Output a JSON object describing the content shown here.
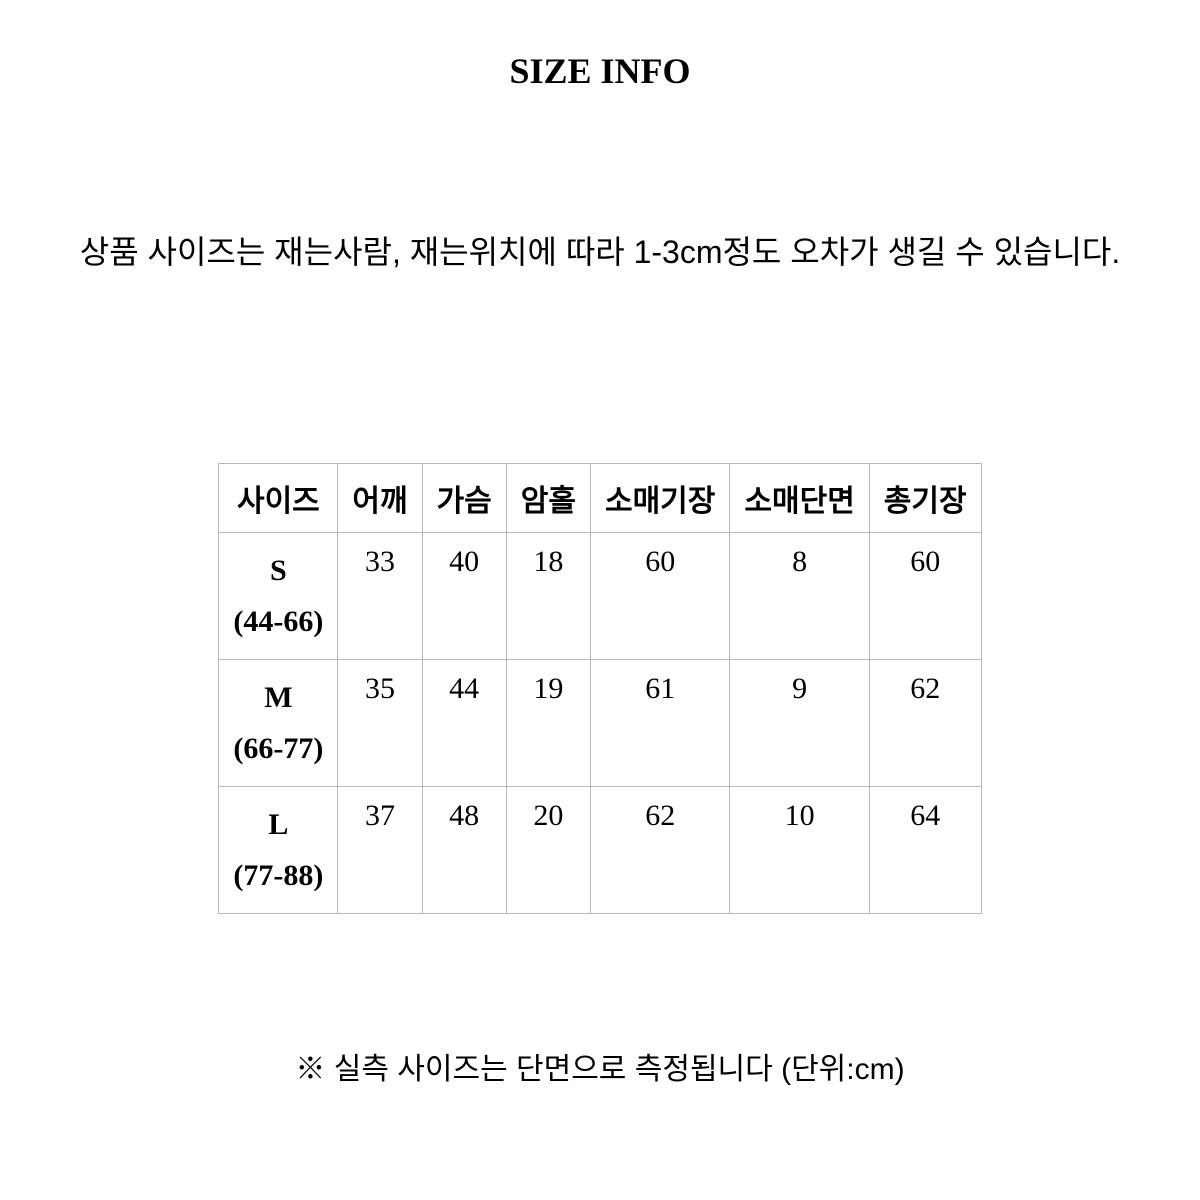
{
  "title": "SIZE INFO",
  "description": "상품 사이즈는 재는사람, 재는위치에 따라 1-3cm정도 오차가 생길 수 있습니다.",
  "table": {
    "columns": [
      "사이즈",
      "어깨",
      "가슴",
      "암홀",
      "소매기장",
      "소매단면",
      "총기장"
    ],
    "rows": [
      {
        "size_letter": "S",
        "size_range": "(44-66)",
        "values": [
          "33",
          "40",
          "18",
          "60",
          "8",
          "60"
        ]
      },
      {
        "size_letter": "M",
        "size_range": "(66-77)",
        "values": [
          "35",
          "44",
          "19",
          "61",
          "9",
          "62"
        ]
      },
      {
        "size_letter": "L",
        "size_range": "(77-88)",
        "values": [
          "37",
          "48",
          "20",
          "62",
          "10",
          "64"
        ]
      }
    ],
    "border_color": "#b8b8b8",
    "header_fontsize": 30,
    "cell_fontsize": 30
  },
  "footnote": "※ 실측 사이즈는 단면으로 측정됩니다 (단위:cm)",
  "background_color": "#ffffff",
  "text_color": "#000000"
}
